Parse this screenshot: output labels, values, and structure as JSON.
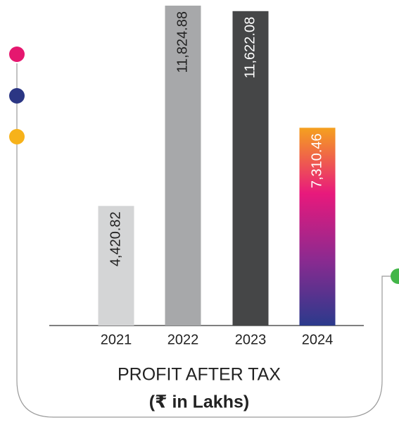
{
  "chart_data": {
    "type": "bar",
    "title": "PROFIT AFTER TAX",
    "subtitle": "(₹ in Lakhs)",
    "categories": [
      "2021",
      "2022",
      "2023",
      "2024"
    ],
    "values": [
      4420.82,
      11824.88,
      11622.08,
      7310.46
    ],
    "value_labels": [
      "4,420.82",
      "11,824.88",
      "11,622.08",
      "7,310.46"
    ],
    "colors": [
      "#d4d5d6",
      "#a7a8aa",
      "#454647",
      [
        "#f5a11f",
        "#e8197c",
        "#8b2a90",
        "#2b3a8c"
      ]
    ],
    "label_colors": [
      "#222222",
      "#222222",
      "#ffffff",
      "#ffffff"
    ]
  }
}
